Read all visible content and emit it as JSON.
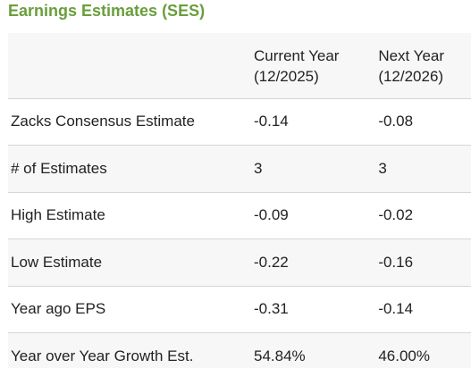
{
  "title": "Earnings Estimates (SES)",
  "header": {
    "col0": "",
    "col1": {
      "line1": "Current Year",
      "line2": "(12/2025)"
    },
    "col2": {
      "line1": "Next Year",
      "line2": "(12/2026)"
    }
  },
  "rows": [
    {
      "label": "Zacks Consensus Estimate",
      "current": "-0.14",
      "next": "-0.08"
    },
    {
      "label": "# of Estimates",
      "current": "3",
      "next": "3"
    },
    {
      "label": "High Estimate",
      "current": "-0.09",
      "next": "-0.02"
    },
    {
      "label": "Low Estimate",
      "current": "-0.22",
      "next": "-0.16"
    },
    {
      "label": "Year ago EPS",
      "current": "-0.31",
      "next": "-0.14"
    },
    {
      "label": "Year over Year Growth Est.",
      "current": "54.84%",
      "next": "46.00%"
    }
  ],
  "colors": {
    "title": "#6a9e3c",
    "text": "#222222",
    "stripe": "#f7f7f7",
    "divider": "#d6d6d6"
  }
}
